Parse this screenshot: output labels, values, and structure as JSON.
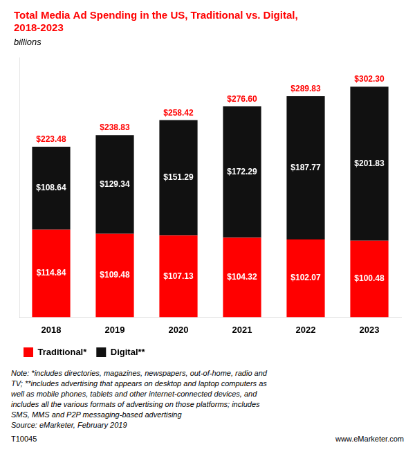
{
  "chart_data": {
    "type": "bar",
    "title": [
      "Total Media Ad Spending in the US, Traditional vs. Digital,",
      "2018-2023"
    ],
    "subtitle": "billions",
    "categories": [
      "2018",
      "2019",
      "2020",
      "2021",
      "2022",
      "2023"
    ],
    "series": [
      {
        "name": "Traditional*",
        "color": "#ff0000",
        "values": [
          114.84,
          109.48,
          107.13,
          104.32,
          102.07,
          100.48
        ],
        "value_labels": [
          "$114.84",
          "$109.48",
          "$107.13",
          "$104.32",
          "$102.07",
          "$100.48"
        ]
      },
      {
        "name": "Digital**",
        "color": "#111111",
        "values": [
          108.64,
          129.34,
          151.29,
          172.29,
          187.77,
          201.83
        ],
        "value_labels": [
          "$108.64",
          "$129.34",
          "$151.29",
          "$172.29",
          "$187.77",
          "$201.83"
        ]
      }
    ],
    "totals": {
      "values": [
        223.48,
        238.83,
        258.42,
        276.6,
        289.83,
        302.3
      ],
      "value_labels": [
        "$223.48",
        "$238.83",
        "$258.42",
        "$276.60",
        "$289.83",
        "$302.30"
      ],
      "color": "#ff0000"
    },
    "stacked": true,
    "data_labels": true,
    "ylim": [
      0,
      340
    ],
    "yticks": [],
    "tick_labels": "x",
    "grid": false,
    "legend": "bottom",
    "annotations": [
      "Note: *includes directories, magazines, newspapers, out-of-home, radio and\nTV; **includes advertising that appears on desktop and laptop computers as\nwell as mobile phones, tablets and other internet-connected devices, and\nincludes all the various formats of advertising on those platforms; includes\nSMS, MMS and P2P messaging-based advertising\nSource: eMarketer, February 2019",
      "T10045",
      "www.eMarketer.com"
    ]
  }
}
